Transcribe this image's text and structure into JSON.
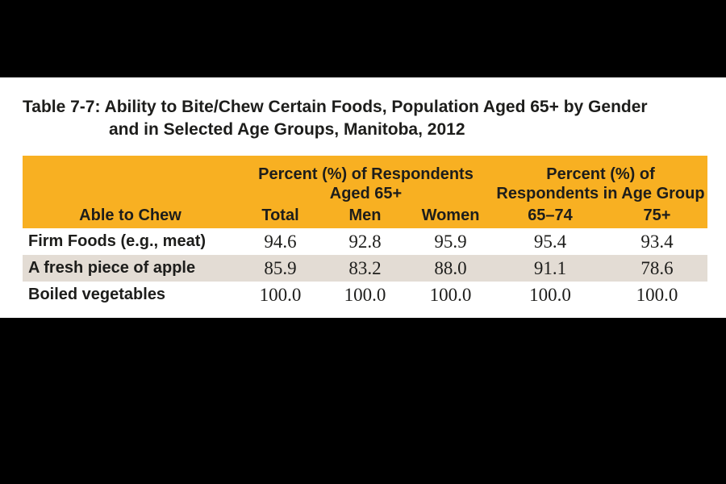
{
  "colors": {
    "page-bg": "#000000",
    "content-bg": "#ffffff",
    "header-bg": "#F8B022",
    "row-shaded-bg": "#E3DCD4",
    "text": "#1D1D1B"
  },
  "title": {
    "line1": "Table 7-7: Ability to Bite/Chew Certain Foods, Population Aged 65+ by Gender",
    "line2": "and in Selected Age Groups, Manitoba, 2012"
  },
  "table": {
    "group_headers": [
      {
        "line1": "Percent (%) of Respondents",
        "line2": "Aged 65+"
      },
      {
        "line1": "Percent (%) of",
        "line2": "Respondents in Age Group"
      }
    ],
    "columns": [
      "Able to Chew",
      "Total",
      "Men",
      "Women",
      "65–74",
      "75+"
    ],
    "rows": [
      {
        "label": "Firm Foods (e.g., meat)",
        "values": [
          "94.6",
          "92.8",
          "95.9",
          "95.4",
          "93.4"
        ]
      },
      {
        "label": "A fresh piece of apple",
        "values": [
          "85.9",
          "83.2",
          "88.0",
          "91.1",
          "78.6"
        ]
      },
      {
        "label": "Boiled vegetables",
        "values": [
          "100.0",
          "100.0",
          "100.0",
          "100.0",
          "100.0"
        ]
      }
    ]
  },
  "chart_data": {
    "type": "table",
    "title": "Table 7-7: Ability to Bite/Chew Certain Foods, Population Aged 65+ by Gender and in Selected Age Groups, Manitoba, 2012",
    "column_groups": [
      "Percent (%) of Respondents Aged 65+",
      "Percent (%) of Respondents in Age Group"
    ],
    "categories": [
      "Firm Foods (e.g., meat)",
      "A fresh piece of apple",
      "Boiled vegetables"
    ],
    "series": [
      {
        "name": "Total",
        "values": [
          94.6,
          85.9,
          100.0
        ]
      },
      {
        "name": "Men",
        "values": [
          92.8,
          83.2,
          100.0
        ]
      },
      {
        "name": "Women",
        "values": [
          95.9,
          88.0,
          100.0
        ]
      },
      {
        "name": "65–74",
        "values": [
          95.4,
          91.1,
          100.0
        ]
      },
      {
        "name": "75+",
        "values": [
          93.4,
          78.6,
          100.0
        ]
      }
    ]
  }
}
